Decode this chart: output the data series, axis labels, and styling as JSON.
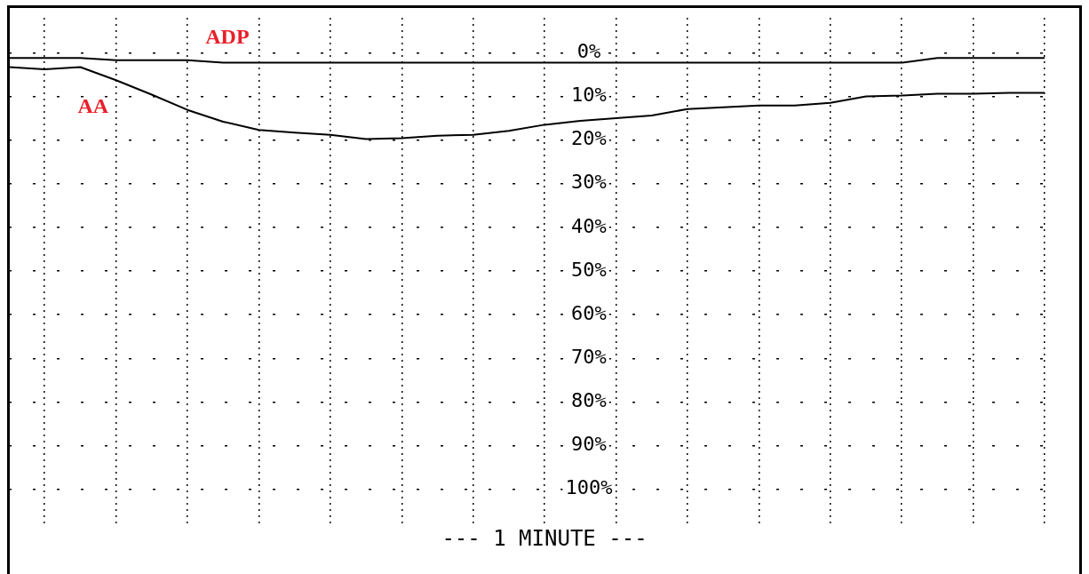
{
  "chart_data": {
    "type": "line",
    "xlabel": "--- 1 MINUTE ---",
    "categories": [
      null,
      null,
      null,
      null,
      null,
      null,
      null,
      null,
      null,
      null,
      null,
      null,
      null,
      null,
      null,
      null,
      null,
      null,
      null,
      null,
      null,
      null,
      null,
      null,
      null,
      null,
      null,
      null,
      null,
      null
    ],
    "series": [
      {
        "name": "ADP",
        "color": "#000000",
        "values": [
          1.2,
          1.2,
          1.2,
          1.7,
          1.7,
          1.7,
          2.3,
          2.3,
          2.3,
          2.3,
          2.3,
          2.3,
          2.3,
          2.3,
          2.3,
          2.3,
          2.3,
          2.3,
          2.3,
          2.3,
          2.3,
          2.3,
          2.3,
          2.3,
          2.3,
          2.3,
          1.2,
          1.2,
          1.2,
          1.2
        ]
      },
      {
        "name": "AA",
        "color": "#000000",
        "values": [
          3.3,
          3.8,
          3.3,
          6.3,
          9.6,
          13.1,
          15.8,
          17.7,
          18.3,
          18.8,
          19.8,
          19.6,
          19,
          18.8,
          17.9,
          16.5,
          15.6,
          15,
          14.4,
          12.9,
          12.5,
          12.1,
          12.1,
          11.5,
          10,
          9.8,
          9.4,
          9.4,
          9.2,
          9.2
        ]
      }
    ],
    "ylim": [
      108,
      -8
    ],
    "yticks": [
      {
        "value": 0,
        "label": "0%"
      },
      {
        "value": 10,
        "label": "10%"
      },
      {
        "value": 20,
        "label": "20%"
      },
      {
        "value": 30,
        "label": "30%"
      },
      {
        "value": 40,
        "label": "40%"
      },
      {
        "value": 50,
        "label": "50%"
      },
      {
        "value": 60,
        "label": "60%"
      },
      {
        "value": 70,
        "label": "70%"
      },
      {
        "value": 80,
        "label": "80%"
      },
      {
        "value": 90,
        "label": "90%"
      },
      {
        "value": 100,
        "label": "100%"
      }
    ],
    "grid": true,
    "legend": false,
    "tick_labels": "y",
    "marker": "none",
    "line_style": "solid"
  }
}
